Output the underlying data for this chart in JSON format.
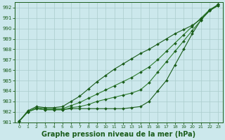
{
  "background_color": "#cce8ec",
  "grid_color": "#aacccc",
  "line_color_dark": "#1a5c1a",
  "line_color_mid": "#2e7d2e",
  "xlabel": "Graphe pression niveau de la mer (hPa)",
  "xlabel_fontsize": 7,
  "ylim": [
    981,
    992.5
  ],
  "xlim": [
    -0.5,
    23.5
  ],
  "yticks": [
    981,
    982,
    983,
    984,
    985,
    986,
    987,
    988,
    989,
    990,
    991,
    992
  ],
  "xticks": [
    0,
    1,
    2,
    3,
    4,
    5,
    6,
    7,
    8,
    9,
    10,
    11,
    12,
    13,
    14,
    15,
    16,
    17,
    18,
    19,
    20,
    21,
    22,
    23
  ],
  "line_flat": [
    981.1,
    982.0,
    982.3,
    982.2,
    982.2,
    982.2,
    982.3,
    982.3,
    982.3,
    982.3,
    982.3,
    982.3,
    982.3,
    982.4,
    982.5,
    983.0,
    984.0,
    985.0,
    986.5,
    988.0,
    989.5,
    990.8,
    991.8,
    992.2
  ],
  "line_mid1": [
    981.1,
    982.0,
    982.3,
    982.2,
    982.2,
    982.2,
    982.4,
    982.5,
    982.7,
    983.0,
    983.2,
    983.4,
    983.6,
    983.8,
    984.1,
    984.8,
    985.8,
    986.8,
    987.8,
    988.8,
    989.8,
    990.8,
    991.7,
    992.2
  ],
  "line_mid2": [
    981.1,
    982.0,
    982.4,
    982.3,
    982.3,
    982.3,
    982.6,
    982.9,
    983.3,
    983.7,
    984.1,
    984.5,
    984.9,
    985.3,
    985.8,
    986.3,
    987.0,
    987.8,
    988.6,
    989.4,
    990.2,
    991.0,
    991.8,
    992.3
  ],
  "line_steep": [
    981.1,
    982.1,
    982.5,
    982.4,
    982.4,
    982.5,
    983.0,
    983.5,
    984.2,
    984.9,
    985.5,
    986.1,
    986.6,
    987.1,
    987.6,
    988.0,
    988.5,
    989.0,
    989.5,
    989.9,
    990.3,
    990.9,
    991.7,
    992.3
  ]
}
